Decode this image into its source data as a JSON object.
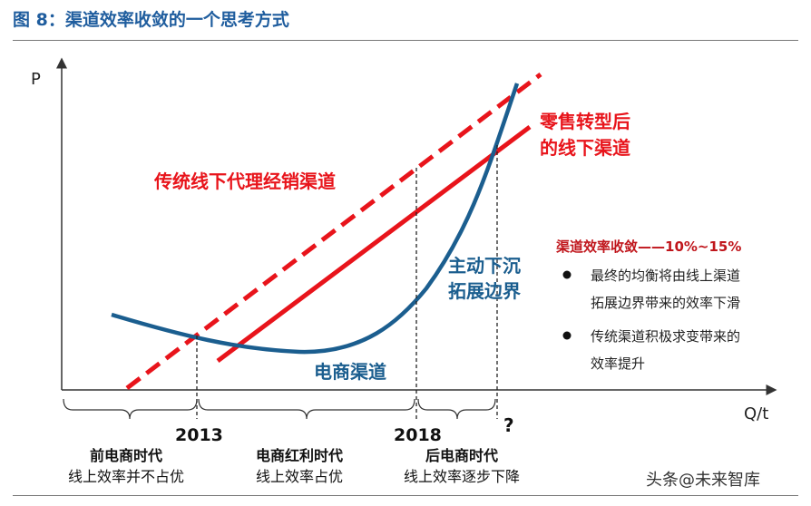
{
  "figure_title": "图 8：渠道效率收敛的一个思考方式",
  "axes": {
    "y_label": "P",
    "x_label": "Q/t"
  },
  "lines": {
    "dashed_label": "传统线下代理经销渠道",
    "solid_label_1": "零售转型后",
    "solid_label_2": "的线下渠道",
    "curve_label": "电商渠道",
    "sink_label_1": "主动下沉",
    "sink_label_2": "拓展边界"
  },
  "markers": {
    "year_1": "2013",
    "year_2": "2018",
    "year_3": "?"
  },
  "eras": [
    {
      "name": "前电商时代",
      "desc": "线上效率并不占优"
    },
    {
      "name": "电商红利时代",
      "desc": "线上效率占优"
    },
    {
      "name": "后电商时代",
      "desc": "线上效率逐步下降"
    }
  ],
  "side_note": {
    "title": "渠道效率收敛——10%~15%",
    "bullets": [
      {
        "line1": "最终的均衡将由线上渠道",
        "line2": "拓展边界带来的效率下滑"
      },
      {
        "line1": "传统渠道积极求变带来的",
        "line2": "效率提升"
      }
    ]
  },
  "watermark": "头条@未来智库",
  "colors": {
    "red": "#e8141b",
    "blue": "#1b5e8f",
    "title_blue": "#1f5d9e",
    "axis": "#333333"
  }
}
